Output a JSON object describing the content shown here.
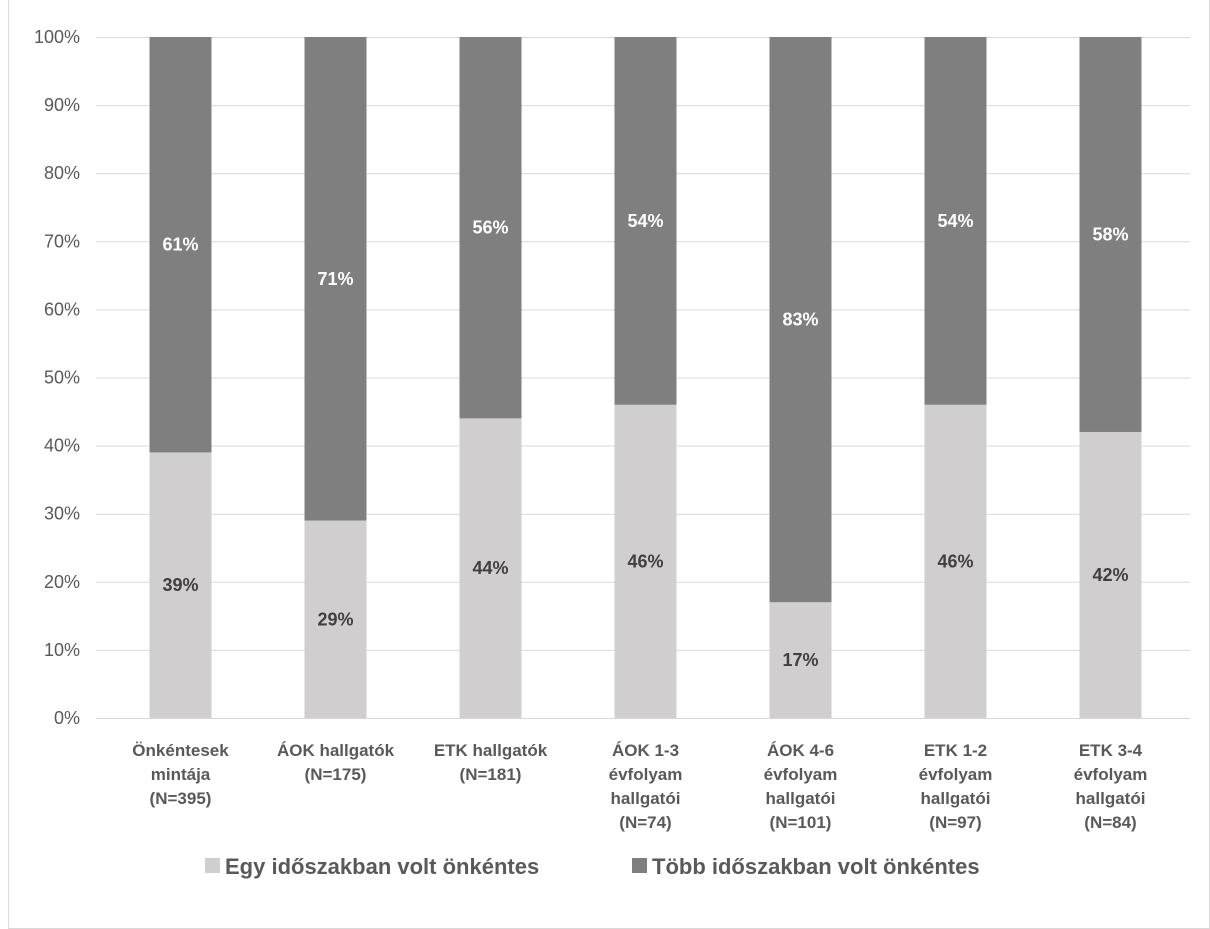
{
  "chart_data": {
    "type": "bar",
    "stacked": true,
    "categories": [
      [
        "Önkéntesek",
        "mintája",
        "(N=395)"
      ],
      [
        "ÁOK hallgatók",
        "(N=175)"
      ],
      [
        "ETK hallgatók",
        "(N=181)"
      ],
      [
        "ÁOK 1-3",
        "évfolyam",
        "hallgatói",
        "(N=74)"
      ],
      [
        "ÁOK 4-6",
        "évfolyam",
        "hallgatói",
        "(N=101)"
      ],
      [
        "ETK 1-2",
        "évfolyam",
        "hallgatói",
        "(N=97)"
      ],
      [
        "ETK 3-4",
        "évfolyam",
        "hallgatói",
        "(N=84)"
      ]
    ],
    "series": [
      {
        "name": "Egy időszakban volt önkéntes",
        "values": [
          39,
          29,
          44,
          46,
          17,
          46,
          42
        ],
        "color": "#d0cece",
        "label_color": "#404040"
      },
      {
        "name": "Több időszakban volt önkéntes",
        "values": [
          61,
          71,
          56,
          54,
          83,
          54,
          58
        ],
        "color": "#7f7f7f",
        "label_color": "#ffffff"
      }
    ],
    "value_suffix": "%",
    "ylim": [
      0,
      100
    ],
    "y_ticks": [
      0,
      10,
      20,
      30,
      40,
      50,
      60,
      70,
      80,
      90,
      100
    ],
    "y_tick_labels": [
      "0%",
      "10%",
      "20%",
      "30%",
      "40%",
      "50%",
      "60%",
      "70%",
      "80%",
      "90%",
      "100%"
    ],
    "grid": true,
    "legend": {
      "position": "bottom"
    }
  },
  "colors": {
    "grid": "#d9d9d9",
    "axis_text": "#595959",
    "frame": "#d9d9d9"
  }
}
